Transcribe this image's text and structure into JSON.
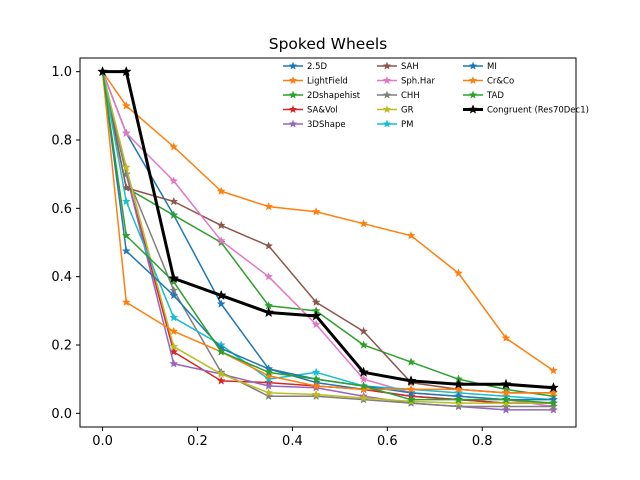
{
  "chart_data": {
    "type": "line",
    "title": "Spoked Wheels",
    "xlabel": "",
    "ylabel": "",
    "xlim": [
      -0.0475,
      0.9975
    ],
    "ylim": [
      -0.04,
      1.04
    ],
    "xticks": [
      0.0,
      0.2,
      0.4,
      0.6,
      0.8
    ],
    "xtick_labels": [
      "0.0",
      "0.2",
      "0.4",
      "0.6",
      "0.8"
    ],
    "yticks": [
      0.0,
      0.2,
      0.4,
      0.6,
      0.8,
      1.0
    ],
    "ytick_labels": [
      "0.0",
      "0.2",
      "0.4",
      "0.6",
      "0.8",
      "1.0"
    ],
    "grid": false,
    "legend_position": "top-right",
    "marker": "star",
    "x": [
      0.0,
      0.05,
      0.15,
      0.25,
      0.35,
      0.45,
      0.55,
      0.65,
      0.75,
      0.85,
      0.95
    ],
    "series": [
      {
        "name": "2.5D",
        "color": "#1f77b4",
        "values": [
          1.0,
          0.82,
          0.58,
          0.32,
          0.13,
          0.09,
          0.07,
          0.05,
          0.04,
          0.03,
          0.03
        ]
      },
      {
        "name": "LightField",
        "color": "#ff7f0e",
        "values": [
          1.0,
          0.9,
          0.78,
          0.65,
          0.605,
          0.59,
          0.555,
          0.52,
          0.41,
          0.22,
          0.125
        ]
      },
      {
        "name": "2Dshapehist",
        "color": "#2ca02c",
        "values": [
          1.0,
          0.66,
          0.58,
          0.5,
          0.315,
          0.3,
          0.2,
          0.15,
          0.1,
          0.07,
          0.05
        ]
      },
      {
        "name": "SA&Vol",
        "color": "#d62728",
        "values": [
          1.0,
          0.7,
          0.18,
          0.095,
          0.09,
          0.08,
          0.07,
          0.05,
          0.04,
          0.03,
          0.03
        ]
      },
      {
        "name": "3DShape",
        "color": "#9467bd",
        "values": [
          1.0,
          0.7,
          0.145,
          0.115,
          0.08,
          0.075,
          0.05,
          0.03,
          0.02,
          0.01,
          0.01
        ]
      },
      {
        "name": "SAH",
        "color": "#8c564b",
        "values": [
          1.0,
          0.66,
          0.62,
          0.55,
          0.49,
          0.325,
          0.24,
          0.09,
          0.07,
          0.06,
          0.06
        ]
      },
      {
        "name": "Sph.Har",
        "color": "#e377c2",
        "values": [
          1.0,
          0.82,
          0.68,
          0.505,
          0.4,
          0.26,
          0.1,
          0.06,
          0.05,
          0.04,
          0.02
        ]
      },
      {
        "name": "CHH",
        "color": "#7f7f7f",
        "values": [
          1.0,
          0.7,
          0.36,
          0.12,
          0.05,
          0.05,
          0.04,
          0.03,
          0.02,
          0.02,
          0.02
        ]
      },
      {
        "name": "GR",
        "color": "#bcbd22",
        "values": [
          1.0,
          0.72,
          0.195,
          0.115,
          0.06,
          0.055,
          0.045,
          0.035,
          0.03,
          0.03,
          0.03
        ]
      },
      {
        "name": "PM",
        "color": "#17becf",
        "values": [
          1.0,
          0.62,
          0.28,
          0.2,
          0.1,
          0.12,
          0.08,
          0.07,
          0.06,
          0.05,
          0.04
        ]
      },
      {
        "name": "MI",
        "color": "#1f77b4",
        "values": [
          1.0,
          0.475,
          0.345,
          0.19,
          0.13,
          0.1,
          0.08,
          0.06,
          0.05,
          0.04,
          0.04
        ]
      },
      {
        "name": "Cr&Co",
        "color": "#ff7f0e",
        "values": [
          1.0,
          0.325,
          0.24,
          0.18,
          0.11,
          0.08,
          0.07,
          0.07,
          0.07,
          0.06,
          0.06
        ]
      },
      {
        "name": "TAD",
        "color": "#2ca02c",
        "values": [
          1.0,
          0.52,
          0.385,
          0.18,
          0.12,
          0.1,
          0.08,
          0.04,
          0.04,
          0.04,
          0.03
        ]
      },
      {
        "name": "Congruent (Res70Dec1)",
        "color": "#000000",
        "values": [
          1.0,
          1.0,
          0.395,
          0.345,
          0.295,
          0.285,
          0.12,
          0.095,
          0.085,
          0.085,
          0.075
        ]
      }
    ]
  }
}
